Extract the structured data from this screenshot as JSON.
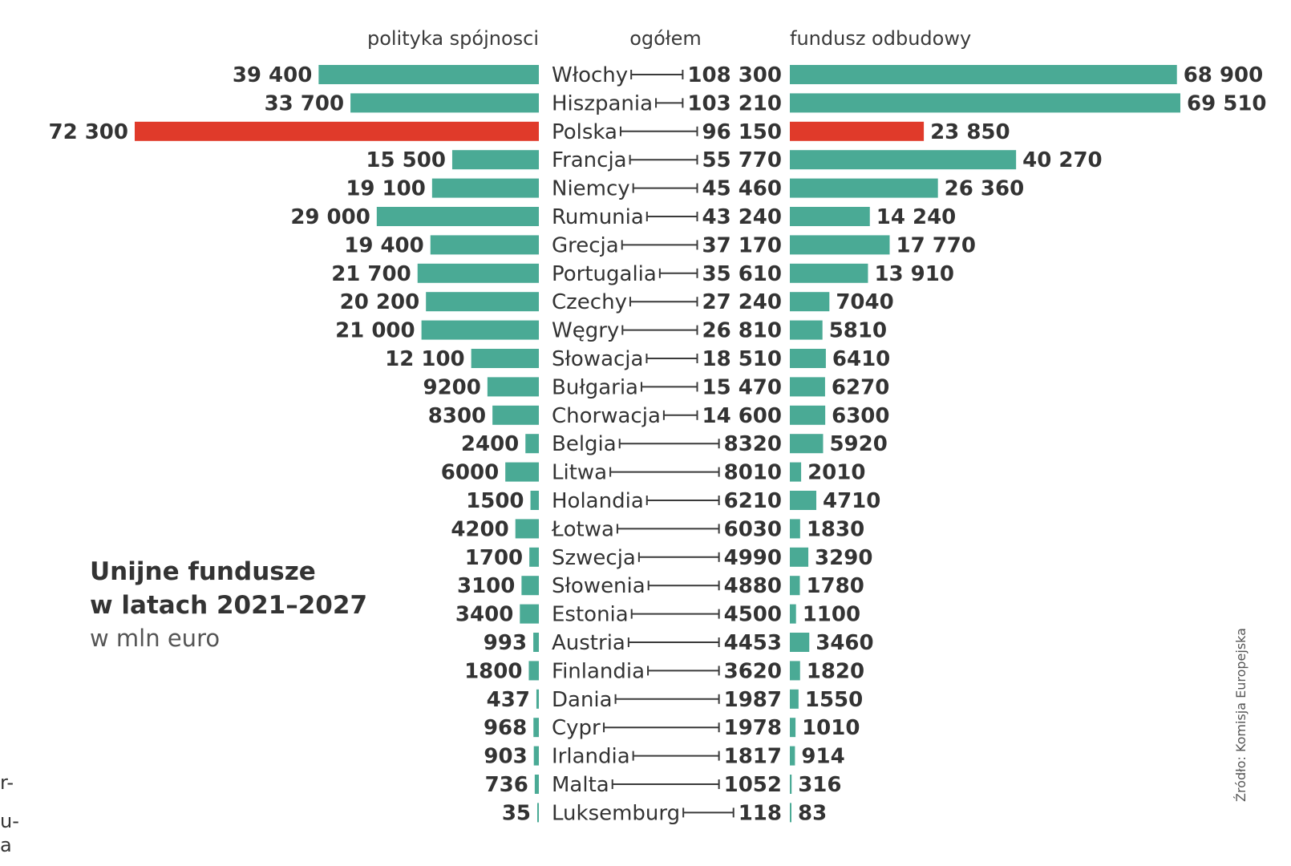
{
  "chart_data": {
    "type": "bar",
    "title": "Unijne fundusze",
    "title_line2": "w latach 2021–2027",
    "subtitle": "w mln euro",
    "source": "Źródło: Komisja Europejska",
    "colors": {
      "bar": "#4aaa95",
      "highlight": "#e03a2a"
    },
    "highlight": "Polska",
    "column_headers": {
      "left": "polityka spójnosci",
      "center": "ogółem",
      "right": "fundusz odbudowy"
    },
    "categories": [
      "Włochy",
      "Hiszpania",
      "Polska",
      "Francja",
      "Niemcy",
      "Rumunia",
      "Grecja",
      "Portugalia",
      "Czechy",
      "Węgry",
      "Słowacja",
      "Bułgaria",
      "Chorwacja",
      "Belgia",
      "Litwa",
      "Holandia",
      "Łotwa",
      "Szwecja",
      "Słowenia",
      "Estonia",
      "Austria",
      "Finlandia",
      "Dania",
      "Cypr",
      "Irlandia",
      "Malta",
      "Luksemburg"
    ],
    "series": [
      {
        "name": "polityka spójnosci",
        "values": [
          39400,
          33700,
          72300,
          15500,
          19100,
          29000,
          19400,
          21700,
          20200,
          21000,
          12100,
          9200,
          8300,
          2400,
          6000,
          1500,
          4200,
          1700,
          3100,
          3400,
          993,
          1800,
          437,
          968,
          903,
          736,
          35
        ]
      },
      {
        "name": "ogółem",
        "values": [
          108300,
          103210,
          96150,
          55770,
          45460,
          43240,
          37170,
          35610,
          27240,
          26810,
          18510,
          15470,
          14600,
          8320,
          8010,
          6210,
          6030,
          4990,
          4880,
          4500,
          4453,
          3620,
          1987,
          1978,
          1817,
          1052,
          118
        ]
      },
      {
        "name": "fundusz odbudowy",
        "values": [
          68900,
          69510,
          23850,
          40270,
          26360,
          14240,
          17770,
          13910,
          7040,
          5810,
          6410,
          6270,
          6300,
          5920,
          2010,
          4710,
          1830,
          3290,
          1780,
          1100,
          3460,
          1820,
          1550,
          1010,
          914,
          316,
          83
        ]
      }
    ],
    "labels": {
      "left": [
        "39 400",
        "33 700",
        "72 300",
        "15 500",
        "19 100",
        "29 000",
        "19 400",
        "21 700",
        "20 200",
        "21 000",
        "12 100",
        "9200",
        "8300",
        "2400",
        "6000",
        "1500",
        "4200",
        "1700",
        "3100",
        "3400",
        "993",
        "1800",
        "437",
        "968",
        "903",
        "736",
        "35"
      ],
      "center": [
        "108 300",
        "103 210",
        "96 150",
        "55 770",
        "45 460",
        "43 240",
        "37 170",
        "35 610",
        "27 240",
        "26 810",
        "18 510",
        "15 470",
        "14 600",
        "8320",
        "8010",
        "6210",
        "6030",
        "4990",
        "4880",
        "4500",
        "4453",
        "3620",
        "1987",
        "1978",
        "1817",
        "1052",
        "118"
      ],
      "right": [
        "68 900",
        "69 510",
        "23 850",
        "40 270",
        "26 360",
        "14 240",
        "17 770",
        "13 910",
        "7040",
        "5810",
        "6410",
        "6270",
        "6300",
        "5920",
        "2010",
        "4710",
        "1830",
        "3290",
        "1780",
        "1100",
        "3460",
        "1820",
        "1550",
        "1010",
        "914",
        "316",
        "83"
      ]
    }
  },
  "edge_fragments": [
    "r-",
    "u-",
    "a"
  ]
}
